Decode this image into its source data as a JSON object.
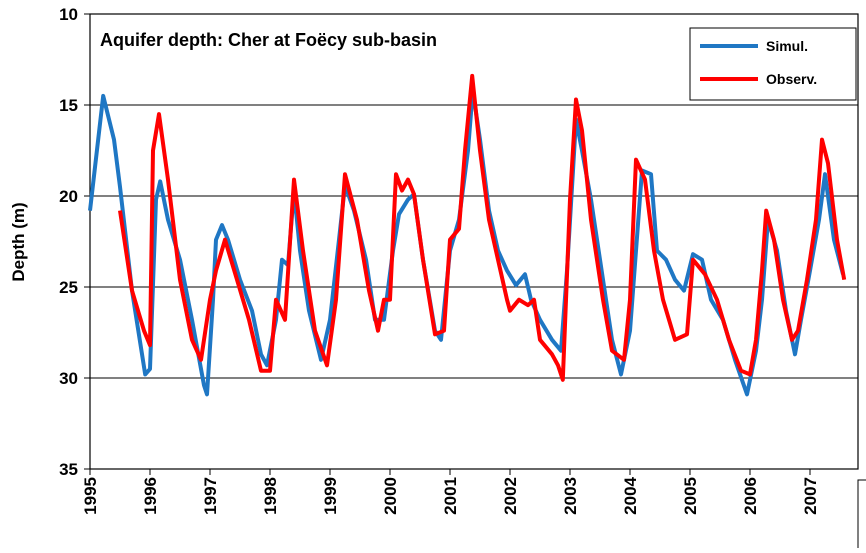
{
  "chart_data": {
    "type": "line",
    "title": "Aquifer depth: Cher at Foëcy sub-basin",
    "y_label": "Depth (m)",
    "xlim": [
      1995,
      2007.8
    ],
    "xticks": [
      1995,
      1996,
      1997,
      1998,
      1999,
      2000,
      2001,
      2002,
      2003,
      2004,
      2005,
      2006,
      2007
    ],
    "ylim": [
      10,
      35
    ],
    "yticks": [
      10,
      15,
      20,
      25,
      30,
      35
    ],
    "invert_y": true,
    "grid": true,
    "legend": "top-right",
    "series": [
      {
        "name": "Simul.",
        "color": "#1f77c4",
        "x": [
          1995.0,
          1995.22,
          1995.4,
          1995.5,
          1995.7,
          1995.92,
          1996.0,
          1996.1,
          1996.17,
          1996.3,
          1996.5,
          1996.7,
          1996.9,
          1996.95,
          1997.05,
          1997.1,
          1997.2,
          1997.3,
          1997.5,
          1997.7,
          1997.85,
          1997.95,
          1998.1,
          1998.2,
          1998.3,
          1998.4,
          1998.5,
          1998.65,
          1998.85,
          1999.0,
          1999.15,
          1999.25,
          1999.4,
          1999.6,
          1999.75,
          1999.9,
          2000.05,
          2000.15,
          2000.3,
          2000.4,
          2000.55,
          2000.75,
          2000.85,
          2001.0,
          2001.15,
          2001.3,
          2001.38,
          2001.5,
          2001.65,
          2001.8,
          2001.95,
          2002.1,
          2002.25,
          2002.35,
          2002.5,
          2002.7,
          2002.85,
          2002.95,
          2003.05,
          2003.1,
          2003.2,
          2003.35,
          2003.5,
          2003.7,
          2003.85,
          2004.0,
          2004.1,
          2004.2,
          2004.35,
          2004.45,
          2004.6,
          2004.75,
          2004.9,
          2005.05,
          2005.2,
          2005.35,
          2005.55,
          2005.75,
          2005.95,
          2006.1,
          2006.2,
          2006.3,
          2006.45,
          2006.6,
          2006.75,
          2006.85,
          2007.0,
          2007.15,
          2007.25,
          2007.4,
          2007.55
        ],
        "values": [
          20.8,
          14.5,
          16.9,
          19.5,
          25.2,
          29.8,
          29.5,
          20.2,
          19.2,
          21.3,
          23.5,
          26.8,
          30.4,
          30.9,
          25.7,
          22.4,
          21.6,
          22.4,
          24.6,
          26.3,
          28.7,
          29.3,
          26.8,
          23.5,
          23.8,
          19.7,
          23,
          26.3,
          29,
          26.8,
          22.4,
          19.4,
          20.8,
          23.5,
          26.8,
          26.8,
          23,
          21,
          20.2,
          19.9,
          23.5,
          27.4,
          27.9,
          23,
          21.3,
          17.5,
          14.2,
          16.9,
          20.8,
          23,
          24.1,
          24.9,
          24.3,
          25.7,
          26.8,
          27.9,
          28.5,
          24.1,
          18.6,
          15.8,
          17.5,
          20.2,
          23.5,
          27.9,
          29.8,
          27.4,
          23,
          18.6,
          18.8,
          23,
          23.5,
          24.6,
          25.2,
          23.2,
          23.5,
          25.7,
          26.8,
          29,
          30.9,
          28.5,
          25.7,
          21.3,
          23,
          26.3,
          28.7,
          26.8,
          24.1,
          21.3,
          18.8,
          22.4,
          24.3
        ]
      },
      {
        "name": "Observ.",
        "color": "#ff0000",
        "x": [
          1995.5,
          1995.7,
          1995.9,
          1996.0,
          1996.05,
          1996.15,
          1996.3,
          1996.5,
          1996.7,
          1996.85,
          1997.0,
          1997.1,
          1997.25,
          1997.45,
          1997.65,
          1997.85,
          1998.0,
          1998.1,
          1998.25,
          1998.4,
          1998.55,
          1998.75,
          1998.95,
          1999.1,
          1999.25,
          1999.45,
          1999.65,
          1999.8,
          1999.9,
          2000.0,
          2000.1,
          2000.2,
          2000.3,
          2000.4,
          2000.55,
          2000.75,
          2000.9,
          2001.0,
          2001.15,
          2001.25,
          2001.37,
          2001.5,
          2001.65,
          2001.8,
          2001.95,
          2002.0,
          2002.15,
          2002.3,
          2002.4,
          2002.5,
          2002.7,
          2002.8,
          2002.88,
          2003.0,
          2003.1,
          2003.2,
          2003.35,
          2003.55,
          2003.7,
          2003.9,
          2004.0,
          2004.1,
          2004.25,
          2004.4,
          2004.55,
          2004.75,
          2004.95,
          2005.05,
          2005.25,
          2005.45,
          2005.65,
          2005.85,
          2006.0,
          2006.1,
          2006.2,
          2006.27,
          2006.4,
          2006.55,
          2006.7,
          2006.8,
          2006.95,
          2007.1,
          2007.2,
          2007.3,
          2007.45,
          2007.57
        ],
        "values": [
          20.8,
          25.2,
          27.4,
          28.2,
          17.5,
          15.5,
          19.1,
          24.6,
          27.9,
          29,
          25.7,
          24.1,
          22.4,
          24.6,
          26.8,
          29.6,
          29.6,
          25.7,
          26.8,
          19.1,
          23,
          27.4,
          29.3,
          25.7,
          18.8,
          21.3,
          25.2,
          27.4,
          25.7,
          25.7,
          18.8,
          19.7,
          19.1,
          19.9,
          23.5,
          27.6,
          27.4,
          22.4,
          21.8,
          17.5,
          13.4,
          17.5,
          21.3,
          23.5,
          25.7,
          26.3,
          25.7,
          26,
          25.7,
          27.9,
          28.7,
          29.3,
          30.1,
          20.2,
          14.7,
          16.4,
          21.3,
          25.7,
          28.5,
          29,
          25.7,
          18,
          19.1,
          23,
          25.7,
          27.9,
          27.6,
          23.5,
          24.3,
          25.7,
          27.9,
          29.6,
          29.8,
          27.9,
          24.1,
          20.8,
          22.4,
          25.7,
          27.9,
          27.4,
          24.6,
          21.3,
          16.9,
          18.2,
          22.4,
          24.6
        ]
      }
    ]
  }
}
